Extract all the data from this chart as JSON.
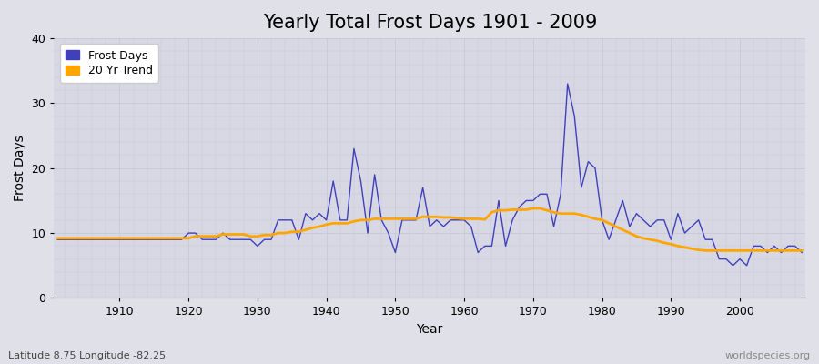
{
  "title": "Yearly Total Frost Days 1901 - 2009",
  "xlabel": "Year",
  "ylabel": "Frost Days",
  "subtitle": "Latitude 8.75 Longitude -82.25",
  "watermark": "worldspecies.org",
  "years": [
    1901,
    1902,
    1903,
    1904,
    1905,
    1906,
    1907,
    1908,
    1909,
    1910,
    1911,
    1912,
    1913,
    1914,
    1915,
    1916,
    1917,
    1918,
    1919,
    1920,
    1921,
    1922,
    1923,
    1924,
    1925,
    1926,
    1927,
    1928,
    1929,
    1930,
    1931,
    1932,
    1933,
    1934,
    1935,
    1936,
    1937,
    1938,
    1939,
    1940,
    1941,
    1942,
    1943,
    1944,
    1945,
    1946,
    1947,
    1948,
    1949,
    1950,
    1951,
    1952,
    1953,
    1954,
    1955,
    1956,
    1957,
    1958,
    1959,
    1960,
    1961,
    1962,
    1963,
    1964,
    1965,
    1966,
    1967,
    1968,
    1969,
    1970,
    1971,
    1972,
    1973,
    1974,
    1975,
    1976,
    1977,
    1978,
    1979,
    1980,
    1981,
    1982,
    1983,
    1984,
    1985,
    1986,
    1987,
    1988,
    1989,
    1990,
    1991,
    1992,
    1993,
    1994,
    1995,
    1996,
    1997,
    1998,
    1999,
    2000,
    2001,
    2002,
    2003,
    2004,
    2005,
    2006,
    2007,
    2008,
    2009
  ],
  "frost_days": [
    9,
    9,
    9,
    9,
    9,
    9,
    9,
    9,
    9,
    9,
    9,
    9,
    9,
    9,
    9,
    9,
    9,
    9,
    9,
    10,
    10,
    9,
    9,
    9,
    10,
    9,
    9,
    9,
    9,
    8,
    9,
    9,
    12,
    12,
    12,
    9,
    13,
    12,
    13,
    12,
    18,
    12,
    12,
    23,
    18,
    10,
    19,
    12,
    10,
    7,
    12,
    12,
    12,
    17,
    11,
    12,
    11,
    12,
    12,
    12,
    11,
    7,
    8,
    8,
    15,
    8,
    12,
    14,
    15,
    15,
    16,
    16,
    11,
    16,
    33,
    28,
    17,
    21,
    20,
    12,
    9,
    12,
    15,
    11,
    13,
    12,
    11,
    12,
    12,
    9,
    13,
    10,
    11,
    12,
    9,
    9,
    6,
    6,
    5,
    6,
    5,
    8,
    8,
    7,
    8,
    7,
    8,
    8,
    7
  ],
  "trend_values": [
    9.2,
    9.2,
    9.2,
    9.2,
    9.2,
    9.2,
    9.2,
    9.2,
    9.2,
    9.2,
    9.2,
    9.2,
    9.2,
    9.2,
    9.2,
    9.2,
    9.2,
    9.2,
    9.2,
    9.2,
    9.5,
    9.5,
    9.5,
    9.5,
    9.8,
    9.8,
    9.8,
    9.8,
    9.5,
    9.5,
    9.7,
    9.7,
    10.0,
    10.0,
    10.2,
    10.2,
    10.5,
    10.8,
    11.0,
    11.3,
    11.5,
    11.5,
    11.5,
    11.8,
    12.0,
    12.0,
    12.2,
    12.2,
    12.2,
    12.2,
    12.2,
    12.2,
    12.2,
    12.5,
    12.5,
    12.5,
    12.4,
    12.4,
    12.3,
    12.2,
    12.2,
    12.2,
    12.1,
    13.2,
    13.5,
    13.5,
    13.6,
    13.6,
    13.6,
    13.8,
    13.8,
    13.5,
    13.2,
    13.0,
    13.0,
    13.0,
    12.8,
    12.5,
    12.2,
    12.0,
    11.5,
    11.0,
    10.5,
    10.0,
    9.5,
    9.2,
    9.0,
    8.8,
    8.5,
    8.3,
    8.0,
    7.8,
    7.6,
    7.4,
    7.3,
    7.3,
    7.3,
    7.3,
    7.3,
    7.3,
    7.3,
    7.3,
    7.3,
    7.3,
    7.3,
    7.3,
    7.3,
    7.3,
    7.3
  ],
  "line_color": "#4040bb",
  "trend_color": "#ffa500",
  "bg_color": "#e0e0e8",
  "plot_bg_color": "#d8d8e4",
  "grid_color": "#c8c8d8",
  "ylim": [
    0,
    40
  ],
  "xlim": [
    1900.5,
    2009.5
  ],
  "xticks": [
    1910,
    1920,
    1930,
    1940,
    1950,
    1960,
    1970,
    1980,
    1990,
    2000
  ],
  "yticks": [
    0,
    10,
    20,
    30,
    40
  ],
  "title_fontsize": 15,
  "label_fontsize": 10,
  "tick_fontsize": 9,
  "legend_fontsize": 9
}
